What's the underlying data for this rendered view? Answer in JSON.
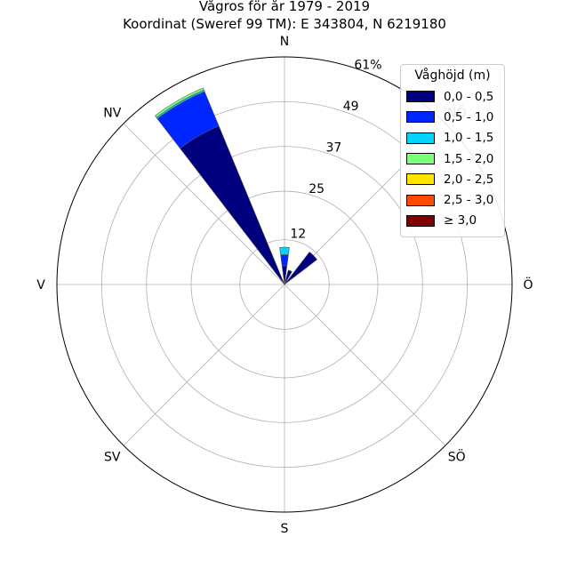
{
  "title_line1": "Vågros för år 1979 - 2019",
  "title_line2": "Koordinat (Sweref 99 TM): E 343804, N 6219180",
  "chart_data": {
    "type": "wind-rose (polar stacked bar)",
    "directions": [
      "N",
      "NÖ",
      "Ö",
      "SÖ",
      "S",
      "SV",
      "V",
      "NV"
    ],
    "direction_labels": {
      "N": "N",
      "NO": "NÖ",
      "O": "Ö",
      "SO": "SÖ",
      "S": "S",
      "SV": "SV",
      "V": "V",
      "NV": "NV"
    },
    "sector_angles_deg": [
      0,
      15,
      30,
      45,
      60,
      75,
      90,
      105,
      120,
      135,
      150,
      165,
      180,
      195,
      210,
      225,
      240,
      255,
      270,
      285,
      300,
      315,
      330,
      345
    ],
    "radial_unit": "%",
    "radial_ticks": [
      "12",
      "25",
      "37",
      "49",
      "61%"
    ],
    "radial_tick_values": [
      12,
      25,
      37,
      49,
      61
    ],
    "rmax": 61,
    "grid": true,
    "legend_position": "upper-right",
    "legend_title": "Våghöjd (m)",
    "series": [
      {
        "name": "0,0 - 0,5",
        "color": "#00007f",
        "values": [
          5,
          0,
          0,
          0,
          0,
          0,
          0,
          0,
          0,
          0,
          0,
          0,
          0,
          0,
          0,
          0,
          0,
          0,
          0,
          0,
          0,
          0,
          46,
          0
        ]
      },
      {
        "name": "0,5 - 1,0",
        "color": "#0026ff",
        "values": [
          3,
          0,
          0,
          0,
          0,
          0,
          0,
          0,
          0,
          0,
          0,
          0,
          0,
          0,
          0,
          0,
          0,
          0,
          0,
          0,
          0,
          0,
          10,
          0
        ]
      },
      {
        "name": "1,0 - 1,5",
        "color": "#00d4ff",
        "values": [
          2,
          0,
          0,
          0,
          0,
          0,
          0,
          0,
          0,
          0,
          0,
          0,
          0,
          0,
          0,
          0,
          0,
          0,
          0,
          0,
          0,
          0,
          0.4,
          0
        ]
      },
      {
        "name": "1,5 - 2,0",
        "color": "#7dff7a",
        "values": [
          0,
          0,
          0,
          0,
          0,
          0,
          0,
          0,
          0,
          0,
          0,
          0,
          0,
          0,
          0,
          0,
          0,
          0,
          0,
          0,
          0,
          0,
          0.6,
          0
        ]
      },
      {
        "name": "2,0 - 2,5",
        "color": "#ffe500",
        "values": [
          0,
          0,
          0,
          0,
          0,
          0,
          0,
          0,
          0,
          0,
          0,
          0,
          0,
          0,
          0,
          0,
          0,
          0,
          0,
          0,
          0,
          0,
          0,
          0
        ]
      },
      {
        "name": "2,5 - 3,0",
        "color": "#ff4a00",
        "values": [
          0,
          0,
          0,
          0,
          0,
          0,
          0,
          0,
          0,
          0,
          0,
          0,
          0,
          0,
          0,
          0,
          0,
          0,
          0,
          0,
          0,
          0,
          0,
          0
        ]
      },
      {
        "name": "≥ 3,0",
        "color": "#7f0000",
        "values": [
          0,
          0,
          0,
          0,
          0,
          0,
          0,
          0,
          0,
          0,
          0,
          0,
          0,
          0,
          0,
          0,
          0,
          0,
          0,
          0,
          0,
          0,
          0,
          0
        ]
      }
    ],
    "extra_sectors": [
      {
        "angle_deg": 22.5,
        "values": [
          4
        ]
      },
      {
        "angle_deg": 45,
        "values": [
          11
        ]
      }
    ]
  }
}
